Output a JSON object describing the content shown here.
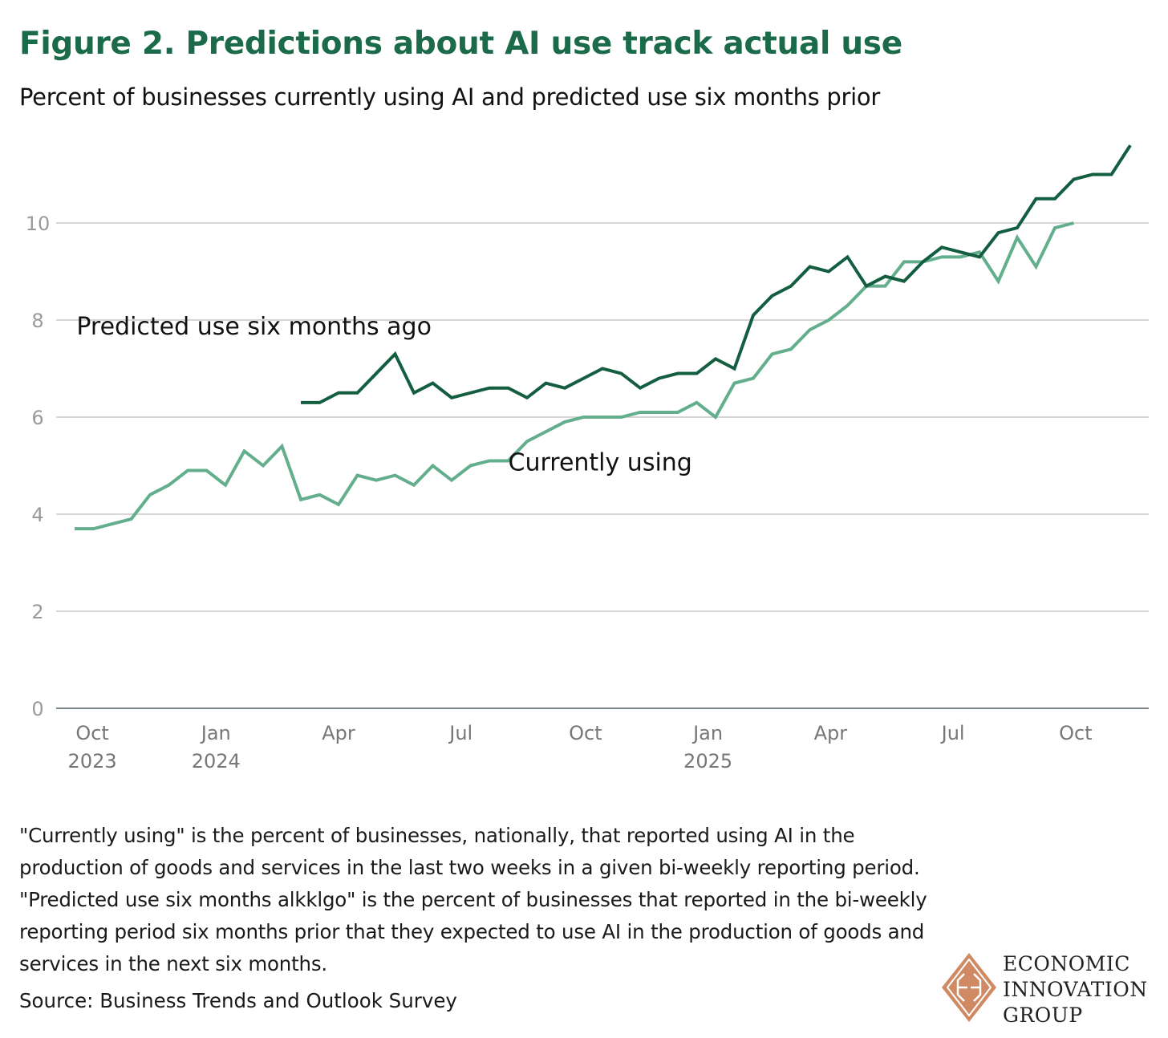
{
  "title": "Figure 2. Predictions about AI use track actual use",
  "subtitle": "Percent of businesses currently using AI and predicted use six months prior",
  "footnote": "\"Currently using\" is the percent of businesses, nationally, that reported using AI in the production of goods and services in the last two weeks in a given bi-weekly reporting period. \"Predicted use six months alkklgo\" is the percent of businesses that reported in the bi-weekly reporting period six months prior that they expected to use AI in the production of goods and services in the next six months.",
  "source": "Source: Business Trends and Outlook Survey",
  "logo": {
    "line1": "ECONOMIC",
    "line2": "INNOVATION",
    "line3": "GROUP",
    "color": "#d08a63"
  },
  "chart_data": {
    "type": "line",
    "title": "Figure 2. Predictions about AI use track actual use",
    "xlabel": "",
    "ylabel": "",
    "ylim": [
      0,
      11.8
    ],
    "y_ticks": [
      0,
      2,
      4,
      6,
      8,
      10
    ],
    "grid": true,
    "x_unit": "bi-weekly reporting period index",
    "x_ticks": [
      {
        "pos": 0.94,
        "label": "Oct",
        "year": "2023"
      },
      {
        "pos": 7.5,
        "label": "Jan",
        "year": "2024"
      },
      {
        "pos": 14.0,
        "label": "Apr",
        "year": ""
      },
      {
        "pos": 20.5,
        "label": "Jul",
        "year": ""
      },
      {
        "pos": 27.1,
        "label": "Oct",
        "year": ""
      },
      {
        "pos": 33.6,
        "label": "Jan",
        "year": "2025"
      },
      {
        "pos": 40.1,
        "label": "Apr",
        "year": ""
      },
      {
        "pos": 46.6,
        "label": "Jul",
        "year": ""
      },
      {
        "pos": 53.1,
        "label": "Oct",
        "year": ""
      }
    ],
    "series": [
      {
        "name": "Currently using",
        "color": "#62ae8d",
        "start_index": 0,
        "label_anchor": {
          "index": 23,
          "value": 4.9
        },
        "values": [
          3.7,
          3.7,
          3.8,
          3.9,
          4.4,
          4.6,
          4.9,
          4.9,
          4.6,
          5.3,
          5.0,
          5.4,
          4.3,
          4.4,
          4.2,
          4.8,
          4.7,
          4.8,
          4.6,
          5.0,
          4.7,
          5.0,
          5.1,
          5.1,
          5.5,
          5.7,
          5.9,
          6.0,
          6.0,
          6.0,
          6.1,
          6.1,
          6.1,
          6.3,
          6.0,
          6.7,
          6.8,
          7.3,
          7.4,
          7.8,
          8.0,
          8.3,
          8.7,
          8.7,
          9.2,
          9.2,
          9.3,
          9.3,
          9.4,
          8.8,
          9.7,
          9.1,
          9.9,
          10.0
        ]
      },
      {
        "name": "Predicted use six months ago",
        "color": "#135e40",
        "start_index": 12,
        "label_anchor": {
          "index": 0.1,
          "value": 7.7
        },
        "values": [
          6.3,
          6.3,
          6.5,
          6.5,
          6.9,
          7.3,
          6.5,
          6.7,
          6.4,
          6.5,
          6.6,
          6.6,
          6.4,
          6.7,
          6.6,
          6.8,
          7.0,
          6.9,
          6.6,
          6.8,
          6.9,
          6.9,
          7.2,
          7.0,
          8.1,
          8.5,
          8.7,
          9.1,
          9.0,
          9.3,
          8.7,
          8.9,
          8.8,
          9.2,
          9.5,
          9.4,
          9.3,
          9.8,
          9.9,
          10.5,
          10.5,
          10.9,
          11.0,
          11.0,
          11.6
        ]
      }
    ]
  }
}
